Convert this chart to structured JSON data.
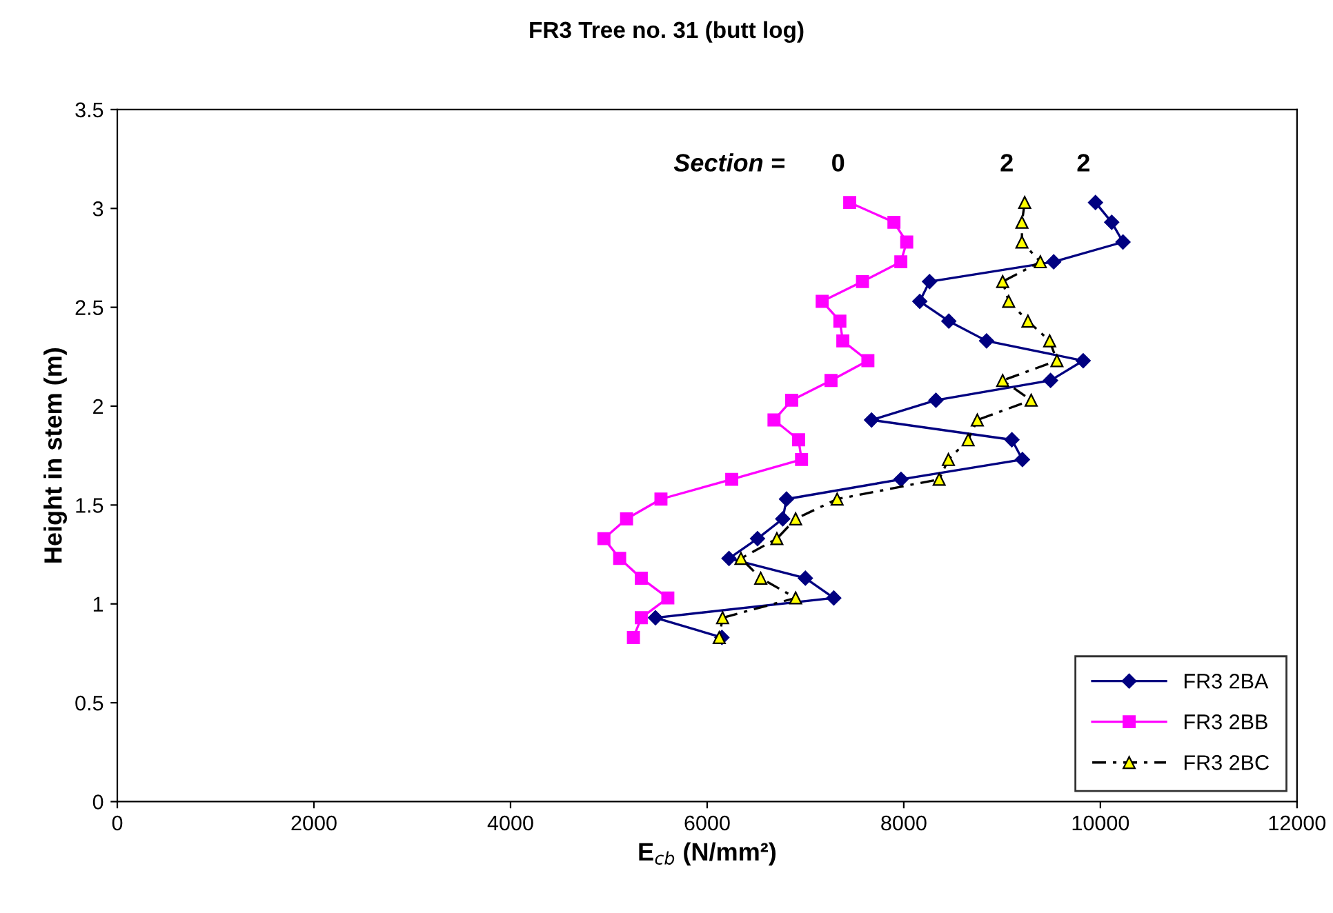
{
  "chart_data": {
    "type": "line",
    "title": "FR3 Tree no. 31 (butt log)",
    "xlabel": "E$_{cb}$ (N/mm²)",
    "ylabel": "Height in stem (m)",
    "xlim": [
      0,
      12000
    ],
    "xticks": [
      0,
      2000,
      4000,
      6000,
      8000,
      10000,
      12000
    ],
    "ylim": [
      0,
      3.5
    ],
    "yticks": [
      0,
      0.5,
      1,
      1.5,
      2,
      2.5,
      3,
      3.5
    ],
    "grid": false,
    "legend": "bottom right",
    "series": [
      {
        "name": "FR3 2BA",
        "color": "#000080",
        "marker": "diamond",
        "line_style": "solid",
        "x": [
          9950,
          10115,
          10230,
          9525,
          8262,
          8163,
          8458,
          8842,
          9825,
          9493,
          8327,
          7672,
          9100,
          9207,
          7972,
          6807,
          6769,
          6512,
          6222,
          6999,
          7288,
          5474,
          6150
        ],
        "values": [
          3.03,
          2.93,
          2.83,
          2.73,
          2.63,
          2.53,
          2.43,
          2.33,
          2.23,
          2.13,
          2.03,
          1.93,
          1.83,
          1.73,
          1.63,
          1.53,
          1.43,
          1.33,
          1.23,
          1.13,
          1.03,
          0.93,
          0.83
        ]
      },
      {
        "name": "FR3 2BB",
        "color": "#ff00ff",
        "marker": "square",
        "line_style": "solid",
        "x": [
          7450,
          7900,
          8030,
          7970,
          7580,
          7170,
          7350,
          7380,
          7635,
          7260,
          6860,
          6680,
          6930,
          6960,
          6250,
          5530,
          5180,
          4950,
          5110,
          5330,
          5600,
          5330,
          5250
        ],
        "values": [
          3.03,
          2.93,
          2.83,
          2.73,
          2.63,
          2.53,
          2.43,
          2.33,
          2.23,
          2.13,
          2.03,
          1.93,
          1.83,
          1.73,
          1.63,
          1.53,
          1.43,
          1.33,
          1.23,
          1.13,
          1.03,
          0.93,
          0.83
        ]
      },
      {
        "name": "FR3 2BC",
        "color": "#000000",
        "marker": "triangle",
        "line_style": "dashed",
        "x": [
          9230,
          9202,
          9202,
          9389,
          9006,
          9067,
          9263,
          9484,
          9558,
          9006,
          9296,
          8748,
          8655,
          8454,
          8360,
          7322,
          6900,
          6709,
          6344,
          6545,
          6900,
          6157,
          6123
        ],
        "values": [
          3.03,
          2.93,
          2.83,
          2.73,
          2.63,
          2.53,
          2.43,
          2.33,
          2.23,
          2.13,
          2.03,
          1.93,
          1.83,
          1.73,
          1.63,
          1.53,
          1.43,
          1.33,
          1.23,
          1.13,
          1.03,
          0.93,
          0.83
        ]
      }
    ],
    "annotations": [
      "Section =",
      "0",
      "2",
      "2"
    ]
  }
}
